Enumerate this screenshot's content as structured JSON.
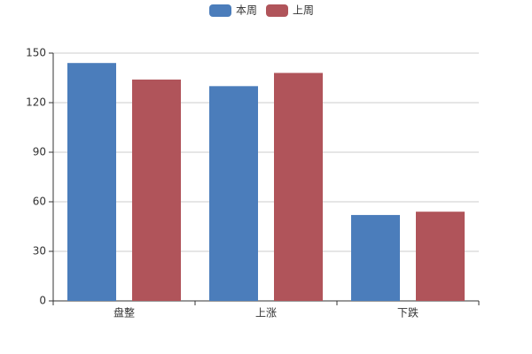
{
  "chart_data": {
    "type": "bar",
    "categories": [
      "盘整",
      "上涨",
      "下跌"
    ],
    "series": [
      {
        "name": "本周",
        "color": "#4b7dbb",
        "values": [
          144,
          130,
          52
        ]
      },
      {
        "name": "上周",
        "color": "#b0545a",
        "values": [
          134,
          138,
          54
        ]
      }
    ],
    "ylim": [
      0,
      150
    ],
    "yticks": [
      0,
      30,
      60,
      90,
      120,
      150
    ],
    "grid": true,
    "legend": "top"
  }
}
